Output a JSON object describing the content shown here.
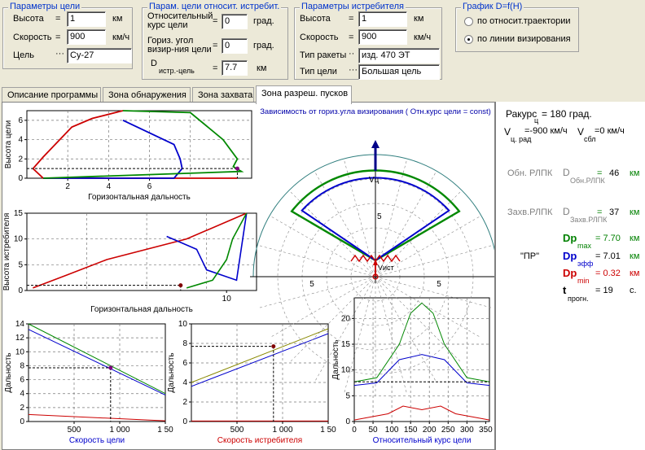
{
  "target_params": {
    "title": "Параметры цели",
    "altitude_label": "Высота",
    "altitude_value": "1",
    "altitude_unit": "км",
    "speed_label": "Скорость",
    "speed_value": "900",
    "speed_unit": "км/ч",
    "target_label": "Цель",
    "target_value": "Су-27"
  },
  "rel_params": {
    "title": "Парам. цели относит. истребит.",
    "course_label_1": "Относительный",
    "course_label_2": "курс цели",
    "course_value": "0",
    "course_unit": "град.",
    "angle_label_1": "Гориз. угол",
    "angle_label_2": "визир-ния цели",
    "angle_value": "0",
    "angle_unit": "град.",
    "dist_label": "D",
    "dist_sub": "истр.-цель",
    "dist_value": "7.7",
    "dist_unit": "км"
  },
  "fighter_params": {
    "title": "Параметры истребителя",
    "altitude_label": "Высота",
    "altitude_value": "1",
    "altitude_unit": "км",
    "speed_label": "Скорость",
    "speed_value": "900",
    "speed_unit": "км/ч",
    "missile_label": "Тип ракеты",
    "missile_value": "изд. 470 ЭТ",
    "target_type_label": "Тип цели",
    "target_type_value": "Большая цель"
  },
  "graph_group": {
    "title": "График  D=f(H)",
    "option1": "по относит.траектории",
    "option2": "по линии визирования",
    "selected": 2
  },
  "tabs": [
    "Описание программы",
    "Зона обнаружения",
    "Зона захвата",
    "Зона разреш. пусков"
  ],
  "active_tab": 3,
  "charts": {
    "polar_title": "Зависимость от гориз.угла визирования ( Отн.курс цели = const)",
    "polar_vc": "Vц",
    "polar_vi": "Vист",
    "polar_ticks": [
      "5",
      "5",
      "5"
    ],
    "p1_ylabel": "Высота цели",
    "p1_xlabel": "Горизонтальная дальность",
    "p1_xticks": [
      "2",
      "4",
      "6"
    ],
    "p1_yticks": [
      "0",
      "2",
      "4",
      "6"
    ],
    "p2_ylabel": "Высота истребителя",
    "p2_xlabel": "Горизонтальная дальность",
    "p2_xticks": [
      "10"
    ],
    "p2_yticks": [
      "0",
      "5",
      "10",
      "15"
    ],
    "p3_ylabel": "Дальность",
    "p3_xlabel": "Скорость цели",
    "p3_xticks": [
      "500",
      "1 000",
      "1 50"
    ],
    "p3_yticks": [
      "0",
      "2",
      "4",
      "6",
      "8",
      "10",
      "12",
      "14"
    ],
    "p4_ylabel": "Дальность",
    "p4_xlabel": "Скорость истребителя",
    "p4_xticks": [
      "500",
      "1 000",
      "1 50"
    ],
    "p4_yticks": [
      "0",
      "2",
      "4",
      "6",
      "8",
      "10"
    ],
    "p5_ylabel": "Дальность",
    "p5_xlabel": "Относительный курс цели",
    "p5_xticks": [
      "0",
      "50",
      "100",
      "150",
      "200",
      "250",
      "300",
      "350"
    ],
    "p5_yticks": [
      "0",
      "5",
      "10",
      "15",
      "20"
    ]
  },
  "chart_data": [
    {
      "type": "line",
      "ylabel": "Высота цели",
      "xlabel": "Горизонтальная дальность",
      "xlim": [
        0,
        11
      ],
      "ylim": [
        0,
        7
      ],
      "series": [
        {
          "color": "#cc0000",
          "x": [
            4.7,
            3.2,
            2.2,
            0.8,
            0.3,
            0.8,
            10.3
          ],
          "y": [
            7,
            6.2,
            5.3,
            2.2,
            1,
            0,
            0
          ]
        },
        {
          "color": "#0000cc",
          "x": [
            4.7,
            7.2,
            7.5,
            7.6,
            7.2,
            0.8
          ],
          "y": [
            6,
            3.5,
            2,
            1,
            0,
            0
          ]
        },
        {
          "color": "#008800",
          "x": [
            4.7,
            8,
            9.6,
            10.3,
            10.1,
            10.5,
            0.8
          ],
          "y": [
            7,
            6.8,
            4,
            2,
            1.2,
            0.7,
            0
          ]
        }
      ]
    },
    {
      "type": "line",
      "ylabel": "Высота истребителя",
      "xlabel": "Горизонтальная дальность",
      "xlim": [
        0,
        11.5
      ],
      "ylim": [
        0,
        15
      ],
      "series": [
        {
          "color": "#cc0000",
          "x": [
            0.3,
            2,
            4,
            8,
            11
          ],
          "y": [
            0.5,
            3,
            6,
            10,
            15
          ]
        },
        {
          "color": "#0000cc",
          "x": [
            7,
            8.5,
            9,
            10.5,
            11
          ],
          "y": [
            10.5,
            8,
            4,
            2,
            15
          ]
        },
        {
          "color": "#008800",
          "x": [
            11,
            10.3,
            10,
            9.3,
            8
          ],
          "y": [
            15,
            10,
            6,
            2,
            0.5
          ]
        }
      ]
    },
    {
      "type": "line",
      "ylabel": "Дальность",
      "xlabel": "Скорость цели",
      "xlim": [
        0,
        1500
      ],
      "ylim": [
        0,
        14
      ],
      "series": [
        {
          "color": "#008800",
          "x": [
            0,
            1500
          ],
          "y": [
            14,
            4
          ]
        },
        {
          "color": "#0000cc",
          "x": [
            0,
            1500
          ],
          "y": [
            13.2,
            3.8
          ]
        },
        {
          "color": "#cc0000",
          "x": [
            0,
            1500
          ],
          "y": [
            1,
            0.1
          ]
        }
      ]
    },
    {
      "type": "line",
      "ylabel": "Дальность",
      "xlabel": "Скорость истребителя",
      "xlim": [
        0,
        1500
      ],
      "ylim": [
        0,
        10
      ],
      "series": [
        {
          "color": "#888800",
          "x": [
            0,
            1500
          ],
          "y": [
            4,
            9.5
          ]
        },
        {
          "color": "#0000cc",
          "x": [
            0,
            1500
          ],
          "y": [
            3.6,
            9
          ]
        },
        {
          "color": "#cc0000",
          "x": [
            0,
            1500
          ],
          "y": [
            0.05,
            0.05
          ]
        }
      ]
    },
    {
      "type": "line",
      "ylabel": "Дальность",
      "xlabel": "Относительный курс цели",
      "xlim": [
        0,
        360
      ],
      "ylim": [
        0,
        24
      ],
      "series": [
        {
          "color": "#008800",
          "x": [
            0,
            60,
            120,
            150,
            180,
            210,
            240,
            300,
            360
          ],
          "y": [
            7.7,
            8.5,
            15,
            21,
            23,
            21,
            15,
            8.5,
            7.7
          ]
        },
        {
          "color": "#0000cc",
          "x": [
            0,
            60,
            120,
            180,
            240,
            300,
            360
          ],
          "y": [
            7,
            7.5,
            12,
            13,
            12,
            7.5,
            7
          ]
        },
        {
          "color": "#cc0000",
          "x": [
            0,
            90,
            130,
            180,
            230,
            270,
            360
          ],
          "y": [
            0.3,
            1.5,
            3,
            2.3,
            3,
            1.5,
            0.3
          ]
        }
      ]
    }
  ],
  "side_panel": {
    "rakurs_label": "Ракурс",
    "rakurs_sub": "ц",
    "rakurs_value": "= 180 град.",
    "v_line": "V",
    "v_sub": "ц. рад",
    "v_val": "=-900 км/ч",
    "v2": "V",
    "v2_sub": "сбл",
    "v2_val": "=0 км/ч",
    "obn_label": "Обн. РЛПК",
    "obn_d": "D",
    "obn_sub": "Обн.РЛПК",
    "obn_eq": "=",
    "obn_value": "46",
    "obn_unit": "км",
    "zahv_label": "Захв.РЛПК",
    "zahv_d": "D",
    "zahv_sub": "Захв.РЛПК",
    "zahv_eq": "=",
    "zahv_value": "37",
    "zahv_unit": "км",
    "pr_label": "\"ПР\"",
    "dpmax": "Dp",
    "dpmax_sub": "max",
    "dpmax_value": "=   7.70",
    "dpmax_unit": "км",
    "dpeff": "Dp",
    "dpeff_sub": "эфф",
    "dpeff_value": "=   7.01",
    "dpeff_unit": "км",
    "dpmin": "Dp",
    "dpmin_sub": "min",
    "dpmin_value": "=   0.32",
    "dpmin_unit": "км",
    "t": "t",
    "t_sub": "прогн.",
    "t_value": "=    19",
    "t_unit": "с."
  }
}
